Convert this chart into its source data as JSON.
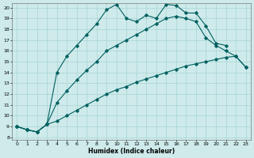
{
  "xlabel": "Humidex (Indice chaleur)",
  "bg_color": "#ceeaea",
  "grid_color": "#a8d4d4",
  "line_color": "#006060",
  "xlim": [
    -0.5,
    23.5
  ],
  "ylim": [
    7.8,
    20.4
  ],
  "xticks": [
    0,
    1,
    2,
    3,
    4,
    5,
    6,
    7,
    8,
    9,
    10,
    11,
    12,
    13,
    14,
    15,
    16,
    17,
    18,
    19,
    20,
    21,
    22,
    23
  ],
  "yticks": [
    8,
    9,
    10,
    11,
    12,
    13,
    14,
    15,
    16,
    17,
    18,
    19,
    20
  ],
  "line1_x": [
    0,
    1,
    2,
    3,
    4,
    5,
    6,
    7,
    8,
    9,
    10,
    11,
    12,
    13,
    14,
    15,
    16,
    17,
    18,
    19,
    20,
    21
  ],
  "line1_y": [
    9.0,
    8.7,
    8.5,
    9.2,
    14.0,
    15.5,
    16.5,
    17.5,
    18.5,
    19.8,
    20.3,
    19.0,
    18.7,
    19.3,
    19.0,
    20.3,
    20.2,
    19.5,
    19.5,
    18.3,
    16.7,
    16.5
  ],
  "line2_x": [
    0,
    1,
    2,
    3,
    4,
    5,
    6,
    7,
    8,
    9,
    10,
    11,
    12,
    13,
    14,
    15,
    16,
    17,
    18,
    19,
    20,
    21,
    22,
    23
  ],
  "line2_y": [
    9.0,
    8.7,
    8.5,
    9.2,
    11.2,
    12.3,
    13.3,
    14.2,
    15.0,
    16.0,
    16.5,
    17.0,
    17.5,
    18.0,
    18.5,
    19.0,
    19.2,
    19.0,
    18.7,
    17.2,
    16.5,
    16.0,
    15.5,
    14.5
  ],
  "line3_x": [
    0,
    1,
    2,
    3,
    4,
    5,
    6,
    7,
    8,
    9,
    10,
    11,
    12,
    13,
    14,
    15,
    16,
    17,
    18,
    19,
    20,
    21,
    22,
    23
  ],
  "line3_y": [
    9.0,
    8.7,
    8.5,
    9.2,
    9.5,
    10.0,
    10.5,
    11.0,
    11.5,
    12.0,
    12.4,
    12.7,
    13.1,
    13.4,
    13.7,
    14.0,
    14.3,
    14.6,
    14.8,
    15.0,
    15.2,
    15.4,
    15.5,
    14.5
  ]
}
